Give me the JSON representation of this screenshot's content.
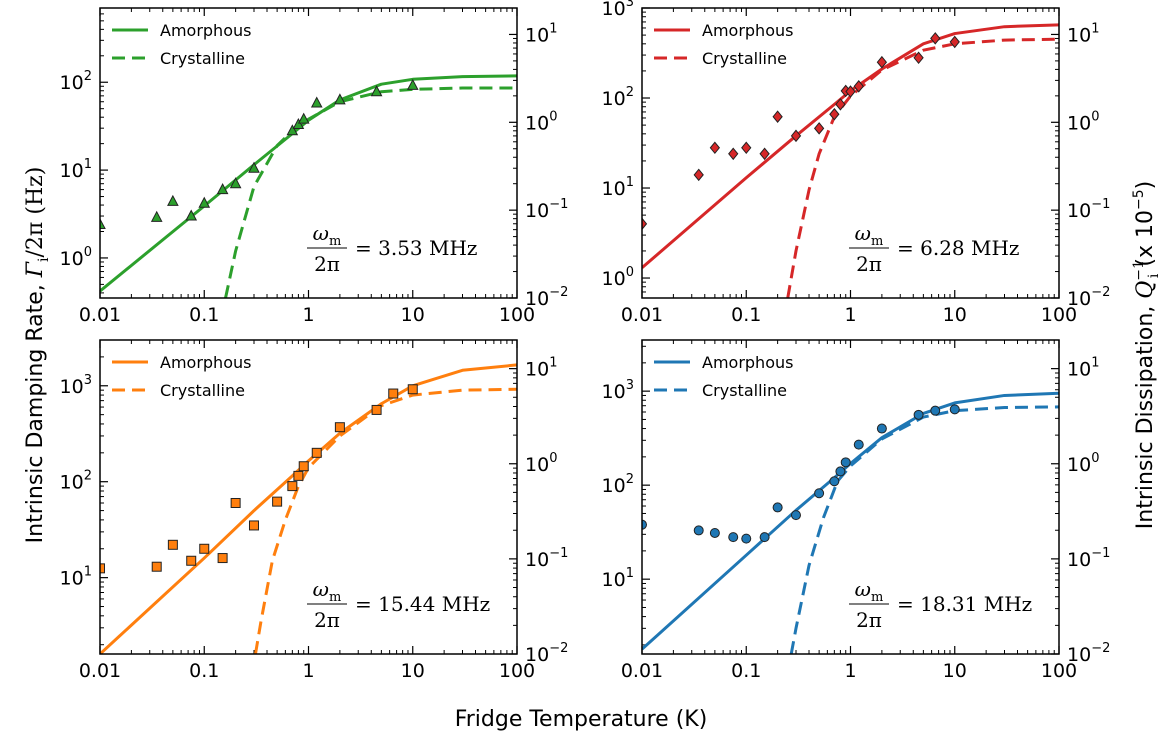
{
  "figure": {
    "ylabel_left_text": "Intrinsic Damping Rate, ",
    "ylabel_left_math": "Γ",
    "ylabel_left_sub": "i",
    "ylabel_left_tail": "/2π (Hz)",
    "ylabel_right_text": "Intrinsic Dissipation, ",
    "ylabel_right_math": "Q",
    "ylabel_right_sup": "−1",
    "ylabel_right_sub": "i",
    "ylabel_right_tail": " (x 10",
    "ylabel_right_exp": "−5",
    "ylabel_right_close": ")",
    "xlabel": "Fridge Temperature (K)",
    "legend_labels": [
      "Amorphous",
      "Crystalline"
    ],
    "x_tick_labels": [
      "0.01",
      "0.1",
      "1",
      "10",
      "100"
    ],
    "right_tick_labels": [
      "10^-2",
      "10^-1",
      "10^0",
      "10^1"
    ]
  },
  "chart_data": [
    {
      "type": "scatter",
      "panel": "top-left",
      "color": "#2ca02c",
      "marker": "triangle",
      "annotation": {
        "lhs_num": "ω",
        "lhs_num_sub": "m",
        "lhs_den": "2π",
        "rhs": "= 3.53 MHz"
      },
      "x_scale": "log",
      "y_scale": "log",
      "xlim": [
        0.01,
        100
      ],
      "ylim": [
        0.35,
        700
      ],
      "y_ticks": [
        1,
        10,
        100
      ],
      "y_tick_labels": [
        {
          "base": "10",
          "exp": "0"
        },
        {
          "base": "10",
          "exp": "1"
        },
        {
          "base": "10",
          "exp": "2"
        }
      ],
      "right_ylim": [
        0.01,
        20
      ],
      "right_ticks": [
        0.01,
        0.1,
        1,
        10
      ],
      "right_tick_labels": [
        {
          "base": "10",
          "exp": "−2"
        },
        {
          "base": "10",
          "exp": "−1"
        },
        {
          "base": "10",
          "exp": "0"
        },
        {
          "base": "10",
          "exp": "1"
        }
      ],
      "points": {
        "x": [
          0.01,
          0.035,
          0.05,
          0.075,
          0.1,
          0.15,
          0.2,
          0.3,
          0.7,
          0.8,
          0.9,
          1.2,
          2.0,
          4.5,
          10.0
        ],
        "y": [
          2.4,
          2.9,
          4.4,
          3.0,
          4.2,
          6.0,
          7.0,
          10.5,
          28,
          33,
          38,
          58,
          63,
          78,
          92
        ]
      },
      "series": [
        {
          "name": "Amorphous",
          "style": "solid",
          "x": [
            0.01,
            0.1,
            0.3,
            0.7,
            1,
            2,
            5,
            10,
            30,
            100
          ],
          "y": [
            0.42,
            3.9,
            11.5,
            26,
            37,
            63,
            95,
            108,
            116,
            118
          ]
        },
        {
          "name": "Crystalline",
          "style": "dashed",
          "x": [
            0.16,
            0.2,
            0.3,
            0.5,
            0.7,
            1,
            2,
            5,
            10,
            30,
            100
          ],
          "y": [
            0.35,
            1.2,
            6.5,
            19,
            28,
            38,
            60,
            78,
            83,
            86,
            86
          ]
        }
      ]
    },
    {
      "type": "scatter",
      "panel": "top-right",
      "color": "#d62728",
      "marker": "diamond",
      "annotation": {
        "lhs_num": "ω",
        "lhs_num_sub": "m",
        "lhs_den": "2π",
        "rhs": "= 6.28 MHz"
      },
      "x_scale": "log",
      "y_scale": "log",
      "xlim": [
        0.01,
        100
      ],
      "ylim": [
        0.6,
        1000
      ],
      "y_ticks": [
        1,
        10,
        100,
        1000
      ],
      "y_tick_labels": [
        {
          "base": "10",
          "exp": "0"
        },
        {
          "base": "10",
          "exp": "1"
        },
        {
          "base": "10",
          "exp": "2"
        },
        {
          "base": "10",
          "exp": "3"
        }
      ],
      "right_ylim": [
        0.01,
        20
      ],
      "right_ticks": [
        0.01,
        0.1,
        1,
        10
      ],
      "right_tick_labels": [
        {
          "base": "10",
          "exp": "−2"
        },
        {
          "base": "10",
          "exp": "−1"
        },
        {
          "base": "10",
          "exp": "0"
        },
        {
          "base": "10",
          "exp": "1"
        }
      ],
      "points": {
        "x": [
          0.01,
          0.035,
          0.05,
          0.075,
          0.1,
          0.15,
          0.2,
          0.3,
          0.5,
          0.7,
          0.8,
          0.9,
          1.0,
          1.2,
          2.0,
          4.5,
          6.5,
          10.0
        ],
        "y": [
          4.0,
          14,
          28,
          24,
          28,
          24,
          62,
          38,
          46,
          66,
          85,
          120,
          118,
          135,
          250,
          280,
          460,
          420
        ]
      },
      "series": [
        {
          "name": "Amorphous",
          "style": "solid",
          "x": [
            0.01,
            0.1,
            0.3,
            0.7,
            1,
            2,
            5,
            10,
            30,
            100
          ],
          "y": [
            1.3,
            13,
            38,
            85,
            120,
            210,
            400,
            520,
            620,
            650
          ]
        },
        {
          "name": "Crystalline",
          "style": "dashed",
          "x": [
            0.25,
            0.3,
            0.4,
            0.5,
            0.7,
            1,
            2,
            5,
            10,
            30,
            100
          ],
          "y": [
            0.6,
            2.0,
            9.5,
            24,
            62,
            105,
            205,
            340,
            400,
            440,
            450
          ]
        }
      ]
    },
    {
      "type": "scatter",
      "panel": "bottom-left",
      "color": "#ff7f0e",
      "marker": "square",
      "annotation": {
        "lhs_num": "ω",
        "lhs_num_sub": "m",
        "lhs_den": "2π",
        "rhs": "= 15.44 MHz"
      },
      "x_scale": "log",
      "y_scale": "log",
      "xlim": [
        0.01,
        100
      ],
      "ylim": [
        1.6,
        3000
      ],
      "y_ticks": [
        10,
        100,
        1000
      ],
      "y_tick_labels": [
        {
          "base": "10",
          "exp": "1"
        },
        {
          "base": "10",
          "exp": "2"
        },
        {
          "base": "10",
          "exp": "3"
        }
      ],
      "right_ylim": [
        0.01,
        20
      ],
      "right_ticks": [
        0.01,
        0.1,
        1,
        10
      ],
      "right_tick_labels": [
        {
          "base": "10",
          "exp": "−2"
        },
        {
          "base": "10",
          "exp": "−1"
        },
        {
          "base": "10",
          "exp": "0"
        },
        {
          "base": "10",
          "exp": "1"
        }
      ],
      "points": {
        "x": [
          0.01,
          0.035,
          0.05,
          0.075,
          0.1,
          0.15,
          0.2,
          0.3,
          0.5,
          0.7,
          0.8,
          0.9,
          1.2,
          2.0,
          4.5,
          6.5,
          10.0
        ],
        "y": [
          12.5,
          13,
          22,
          15,
          20,
          16,
          60,
          35,
          62,
          90,
          115,
          145,
          200,
          370,
          560,
          830,
          920
        ]
      },
      "series": [
        {
          "name": "Amorphous",
          "style": "solid",
          "x": [
            0.01,
            0.1,
            0.3,
            0.7,
            1,
            2,
            5,
            10,
            30,
            100
          ],
          "y": [
            1.6,
            16,
            50,
            115,
            165,
            320,
            650,
            1000,
            1450,
            1650
          ]
        },
        {
          "name": "Crystalline",
          "style": "dashed",
          "x": [
            0.31,
            0.35,
            0.45,
            0.6,
            0.8,
            1,
            2,
            5,
            10,
            30,
            100
          ],
          "y": [
            1.6,
            3.5,
            15,
            40,
            90,
            140,
            300,
            620,
            800,
            900,
            920
          ]
        }
      ]
    },
    {
      "type": "scatter",
      "panel": "bottom-right",
      "color": "#1f77b4",
      "marker": "circle",
      "annotation": {
        "lhs_num": "ω",
        "lhs_num_sub": "m",
        "lhs_den": "2π",
        "rhs": "= 18.31 MHz"
      },
      "x_scale": "log",
      "y_scale": "log",
      "xlim": [
        0.01,
        100
      ],
      "ylim": [
        1.6,
        3500
      ],
      "y_ticks": [
        10,
        100,
        1000
      ],
      "y_tick_labels": [
        {
          "base": "10",
          "exp": "1"
        },
        {
          "base": "10",
          "exp": "2"
        },
        {
          "base": "10",
          "exp": "3"
        }
      ],
      "right_ylim": [
        0.01,
        20
      ],
      "right_ticks": [
        0.01,
        0.1,
        1,
        10
      ],
      "right_tick_labels": [
        {
          "base": "10",
          "exp": "−2"
        },
        {
          "base": "10",
          "exp": "−1"
        },
        {
          "base": "10",
          "exp": "0"
        },
        {
          "base": "10",
          "exp": "1"
        }
      ],
      "points": {
        "x": [
          0.01,
          0.035,
          0.05,
          0.075,
          0.1,
          0.15,
          0.2,
          0.3,
          0.5,
          0.7,
          0.8,
          0.9,
          1.2,
          2.0,
          4.5,
          6.5,
          10.0
        ],
        "y": [
          38,
          33,
          31,
          28,
          27,
          28,
          58,
          48,
          82,
          110,
          140,
          175,
          270,
          400,
          560,
          620,
          640
        ]
      },
      "series": [
        {
          "name": "Amorphous",
          "style": "solid",
          "x": [
            0.01,
            0.1,
            0.3,
            0.7,
            1,
            2,
            5,
            10,
            30,
            100
          ],
          "y": [
            1.8,
            18,
            54,
            120,
            170,
            320,
            580,
            750,
            900,
            950
          ]
        },
        {
          "name": "Crystalline",
          "style": "dashed",
          "x": [
            0.27,
            0.3,
            0.4,
            0.55,
            0.75,
            1,
            2,
            5,
            10,
            30,
            100
          ],
          "y": [
            1.6,
            3.0,
            14,
            45,
            110,
            160,
            310,
            530,
            620,
            670,
            680
          ]
        }
      ]
    }
  ]
}
